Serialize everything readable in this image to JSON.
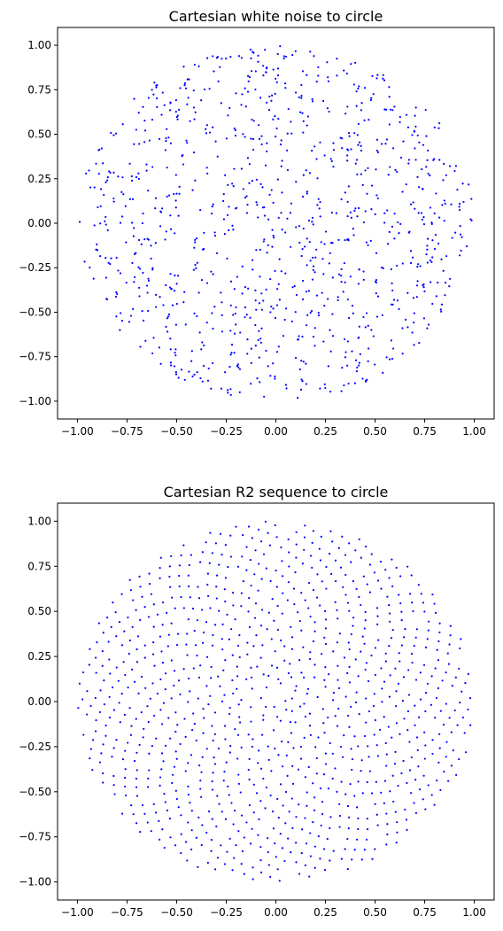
{
  "chart_data": [
    {
      "type": "scatter",
      "title": "Cartesian white noise to circle",
      "xlabel": "",
      "ylabel": "",
      "xlim": [
        -1.1,
        1.1
      ],
      "ylim": [
        -1.1,
        1.1
      ],
      "xticks": [
        -1.0,
        -0.75,
        -0.5,
        -0.25,
        0.0,
        0.25,
        0.5,
        0.75,
        1.0
      ],
      "yticks": [
        -1.0,
        -0.75,
        -0.5,
        -0.25,
        0.0,
        0.25,
        0.5,
        0.75,
        1.0
      ],
      "xtick_labels": [
        "−1.00",
        "−0.75",
        "−0.50",
        "−0.25",
        "0.00",
        "0.25",
        "0.50",
        "0.75",
        "1.00"
      ],
      "ytick_labels": [
        "−1.00",
        "−0.75",
        "−0.50",
        "−0.25",
        "0.00",
        "0.25",
        "0.50",
        "0.75",
        "1.00"
      ],
      "grid": false,
      "color": "#0000ff",
      "point_count": 1000,
      "distribution": "random (white noise) points mapped into the unit disk",
      "points": [
        [
          0.0,
          0.99
        ],
        [
          0.05,
          0.98
        ],
        [
          -0.05,
          0.96
        ],
        [
          0.12,
          0.97
        ],
        [
          0.18,
          0.95
        ],
        [
          0.25,
          0.93
        ],
        [
          -0.15,
          0.9
        ],
        [
          -0.3,
          0.86
        ],
        [
          0.35,
          0.86
        ],
        [
          0.45,
          0.86
        ],
        [
          -0.42,
          0.86
        ],
        [
          0.55,
          0.8
        ],
        [
          -0.55,
          0.8
        ],
        [
          0.65,
          0.72
        ],
        [
          -0.7,
          0.7
        ],
        [
          0.75,
          0.62
        ],
        [
          -0.78,
          0.6
        ],
        [
          0.85,
          0.5
        ],
        [
          -0.85,
          0.52
        ],
        [
          0.9,
          0.38
        ],
        [
          -0.9,
          0.38
        ],
        [
          0.95,
          0.25
        ],
        [
          -0.95,
          0.25
        ],
        [
          0.98,
          0.1
        ],
        [
          -0.98,
          0.14
        ],
        [
          1.0,
          0.05
        ],
        [
          -1.0,
          0.0
        ],
        [
          0.99,
          -0.08
        ],
        [
          -0.95,
          -0.15
        ],
        [
          0.95,
          -0.22
        ],
        [
          -0.92,
          -0.3
        ],
        [
          0.9,
          -0.35
        ],
        [
          -0.9,
          -0.4
        ],
        [
          0.85,
          -0.48
        ],
        [
          -0.82,
          -0.45
        ],
        [
          0.75,
          -0.6
        ],
        [
          -0.75,
          -0.58
        ],
        [
          0.6,
          -0.72
        ],
        [
          -0.62,
          -0.74
        ],
        [
          0.48,
          -0.8
        ],
        [
          -0.45,
          -0.85
        ],
        [
          0.35,
          -0.88
        ],
        [
          -0.32,
          -0.92
        ],
        [
          0.22,
          -0.95
        ],
        [
          -0.18,
          -0.95
        ],
        [
          0.12,
          -0.98
        ],
        [
          -0.08,
          -1.0
        ],
        [
          0.0,
          -1.0
        ],
        [
          -0.02,
          -0.96
        ],
        [
          0.1,
          -0.9
        ],
        [
          -0.2,
          -0.85
        ],
        [
          0.3,
          -0.82
        ],
        [
          -0.5,
          -0.75
        ],
        [
          0.55,
          -0.7
        ],
        [
          0.0,
          0.0
        ],
        [
          0.1,
          0.12
        ],
        [
          -0.12,
          0.2
        ],
        [
          0.2,
          -0.1
        ],
        [
          -0.25,
          -0.18
        ],
        [
          0.3,
          0.3
        ],
        [
          -0.35,
          0.35
        ],
        [
          0.4,
          -0.35
        ],
        [
          -0.45,
          -0.4
        ],
        [
          0.5,
          0.05
        ],
        [
          -0.55,
          0.1
        ],
        [
          0.6,
          0.45
        ],
        [
          -0.6,
          0.48
        ],
        [
          0.65,
          -0.25
        ],
        [
          -0.68,
          -0.3
        ],
        [
          0.7,
          0.2
        ],
        [
          -0.72,
          0.22
        ],
        [
          0.15,
          0.6
        ],
        [
          -0.1,
          0.65
        ],
        [
          0.25,
          -0.6
        ],
        [
          -0.3,
          -0.62
        ],
        [
          0.05,
          0.45
        ],
        [
          -0.05,
          -0.45
        ],
        [
          0.45,
          0.6
        ],
        [
          -0.4,
          0.6
        ],
        [
          0.42,
          -0.58
        ],
        [
          -0.2,
          0.4
        ],
        [
          0.22,
          0.42
        ],
        [
          0.35,
          0.1
        ],
        [
          -0.38,
          -0.05
        ],
        [
          0.8,
          0.0
        ],
        [
          -0.8,
          -0.05
        ],
        [
          0.05,
          0.8
        ],
        [
          -0.02,
          -0.8
        ],
        [
          0.58,
          0.22
        ],
        [
          -0.58,
          -0.22
        ]
      ]
    },
    {
      "type": "scatter",
      "title": "Cartesian R2 sequence to circle",
      "xlabel": "",
      "ylabel": "",
      "xlim": [
        -1.1,
        1.1
      ],
      "ylim": [
        -1.1,
        1.1
      ],
      "xticks": [
        -1.0,
        -0.75,
        -0.5,
        -0.25,
        0.0,
        0.25,
        0.5,
        0.75,
        1.0
      ],
      "yticks": [
        -1.0,
        -0.75,
        -0.5,
        -0.25,
        0.0,
        0.25,
        0.5,
        0.75,
        1.0
      ],
      "xtick_labels": [
        "−1.00",
        "−0.75",
        "−0.50",
        "−0.25",
        "0.00",
        "0.25",
        "0.50",
        "0.75",
        "1.00"
      ],
      "ytick_labels": [
        "−1.00",
        "−0.75",
        "−0.50",
        "−0.25",
        "0.00",
        "0.25",
        "0.50",
        "0.75",
        "1.00"
      ],
      "grid": false,
      "color": "#0000ff",
      "point_count": 1000,
      "distribution": "R2 low-discrepancy sequence mapped into the unit disk (spiral pattern)",
      "points": [
        [
          -0.01,
          0.99
        ],
        [
          0.08,
          0.98
        ],
        [
          0.15,
          0.97
        ],
        [
          0.25,
          0.95
        ],
        [
          0.35,
          0.92
        ],
        [
          0.45,
          0.88
        ],
        [
          0.55,
          0.82
        ],
        [
          0.65,
          0.76
        ],
        [
          0.74,
          0.68
        ],
        [
          0.82,
          0.58
        ],
        [
          0.88,
          0.48
        ],
        [
          0.92,
          0.38
        ],
        [
          0.95,
          0.28
        ],
        [
          0.97,
          0.15
        ],
        [
          0.98,
          0.05
        ],
        [
          0.97,
          -0.12
        ],
        [
          0.95,
          -0.25
        ],
        [
          0.92,
          -0.36
        ],
        [
          0.87,
          -0.46
        ],
        [
          0.8,
          -0.56
        ],
        [
          0.72,
          -0.66
        ],
        [
          0.62,
          -0.75
        ],
        [
          0.52,
          -0.82
        ],
        [
          0.42,
          -0.88
        ],
        [
          0.3,
          -0.93
        ],
        [
          0.18,
          -0.96
        ],
        [
          0.06,
          -0.98
        ],
        [
          0.0,
          -0.99
        ],
        [
          -0.08,
          -0.97
        ],
        [
          -0.18,
          -0.95
        ],
        [
          -0.3,
          -0.92
        ],
        [
          -0.42,
          -0.88
        ],
        [
          -0.52,
          -0.82
        ],
        [
          -0.62,
          -0.75
        ],
        [
          -0.72,
          -0.66
        ],
        [
          -0.8,
          -0.55
        ],
        [
          -0.86,
          -0.45
        ],
        [
          -0.9,
          -0.35
        ],
        [
          -0.94,
          -0.25
        ],
        [
          -0.97,
          -0.12
        ],
        [
          -0.98,
          -0.03
        ],
        [
          -0.97,
          0.1
        ],
        [
          -0.95,
          0.2
        ],
        [
          -0.92,
          0.32
        ],
        [
          -0.88,
          0.42
        ],
        [
          -0.82,
          0.52
        ],
        [
          -0.75,
          0.62
        ],
        [
          -0.68,
          0.7
        ],
        [
          -0.6,
          0.78
        ],
        [
          -0.5,
          0.85
        ],
        [
          -0.4,
          0.9
        ],
        [
          -0.3,
          0.93
        ],
        [
          -0.2,
          0.95
        ],
        [
          -0.1,
          0.96
        ],
        [
          0.0,
          0.0
        ],
        [
          0.05,
          0.1
        ],
        [
          -0.1,
          0.05
        ],
        [
          0.12,
          -0.08
        ],
        [
          -0.05,
          -0.15
        ]
      ]
    }
  ]
}
